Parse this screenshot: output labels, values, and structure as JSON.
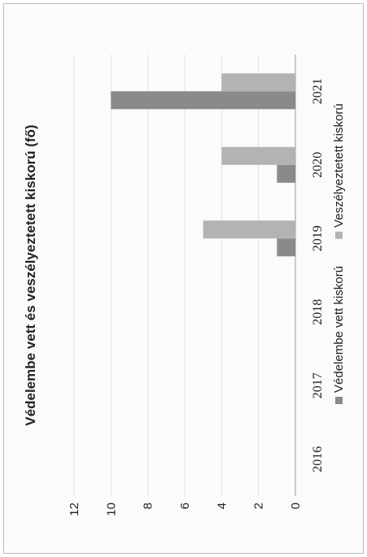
{
  "chart_data": {
    "type": "bar",
    "orientation": "horizontal",
    "title": "Védelembe vett és veszélyeztetett kiskorú (fő)",
    "categories": [
      "2016",
      "2017",
      "2018",
      "2019",
      "2020",
      "2021"
    ],
    "series": [
      {
        "name": "Védelembe vett kiskorú",
        "values": [
          0,
          0,
          0,
          1,
          1,
          10
        ],
        "color": "#8a8a8a"
      },
      {
        "name": "Veszélyeztetett kiskorú",
        "values": [
          0,
          0,
          0,
          5,
          4,
          4
        ],
        "color": "#b3b3b3"
      }
    ],
    "ylim": [
      0,
      12
    ],
    "yticks": [
      "0",
      "2",
      "4",
      "6",
      "8",
      "10",
      "12"
    ],
    "grid": true,
    "legend_position": "bottom"
  }
}
